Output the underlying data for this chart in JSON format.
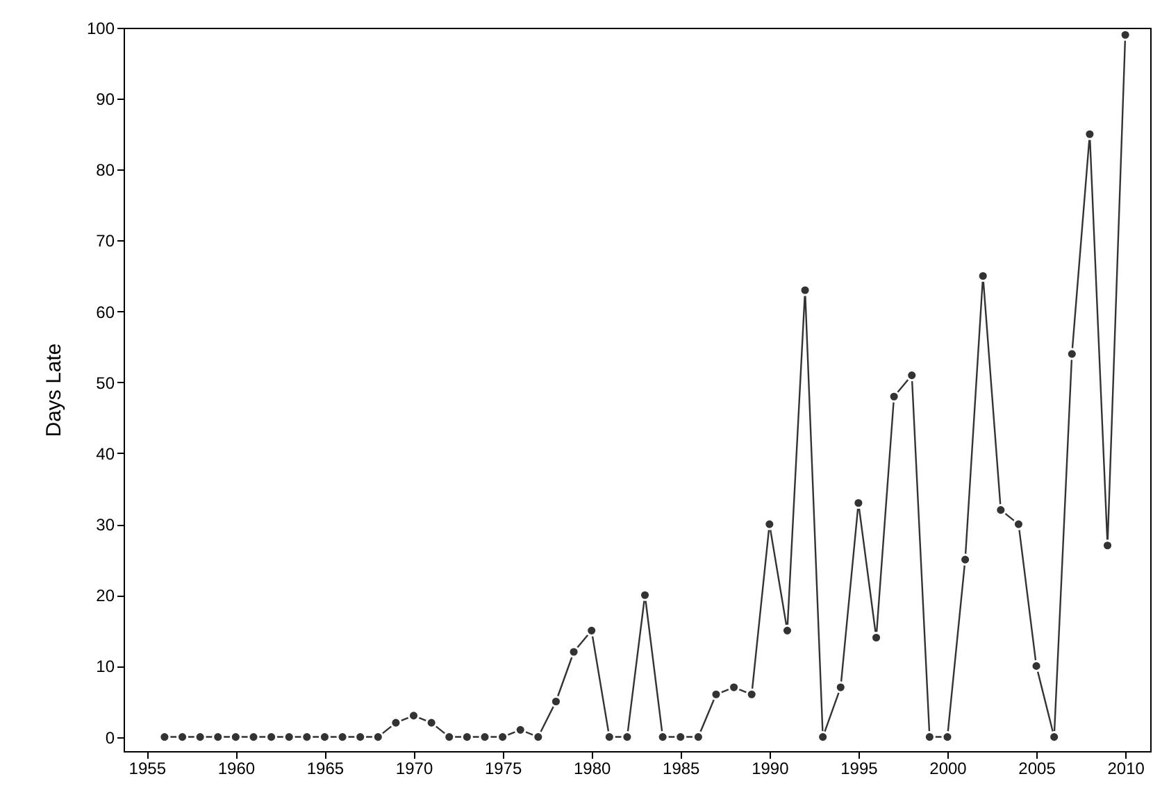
{
  "chart_data": {
    "type": "line",
    "ylabel": "Days Late",
    "x": [
      1956,
      1957,
      1958,
      1959,
      1960,
      1961,
      1962,
      1963,
      1964,
      1965,
      1966,
      1967,
      1968,
      1969,
      1970,
      1971,
      1972,
      1973,
      1974,
      1975,
      1976,
      1977,
      1978,
      1979,
      1980,
      1981,
      1982,
      1983,
      1984,
      1985,
      1986,
      1987,
      1988,
      1989,
      1990,
      1991,
      1992,
      1993,
      1994,
      1995,
      1996,
      1997,
      1998,
      1999,
      2000,
      2001,
      2002,
      2003,
      2004,
      2005,
      2006,
      2007,
      2008,
      2009,
      2010
    ],
    "series": [
      {
        "color": "#333333",
        "values": [
          0,
          0,
          0,
          0,
          0,
          0,
          0,
          0,
          0,
          0,
          0,
          0,
          0,
          2,
          3,
          2,
          0,
          0,
          0,
          0,
          1,
          0,
          5,
          12,
          15,
          0,
          0,
          20,
          0,
          0,
          0,
          6,
          7,
          6,
          30,
          15,
          63,
          0,
          7,
          33,
          14,
          48,
          51,
          0,
          0,
          25,
          65,
          32,
          30,
          10,
          0,
          54,
          85,
          27,
          99
        ]
      }
    ],
    "xlim": [
      1953.7,
      2011.4
    ],
    "xticks": [
      1955,
      1960,
      1965,
      1970,
      1975,
      1980,
      1985,
      1990,
      1995,
      2000,
      2005,
      2010
    ],
    "ylim": [
      -2,
      100
    ],
    "yticks": [
      0,
      10,
      20,
      30,
      40,
      50,
      60,
      70,
      80,
      90,
      100
    ],
    "marker": "circle",
    "line_style": "solid",
    "grid": false
  }
}
